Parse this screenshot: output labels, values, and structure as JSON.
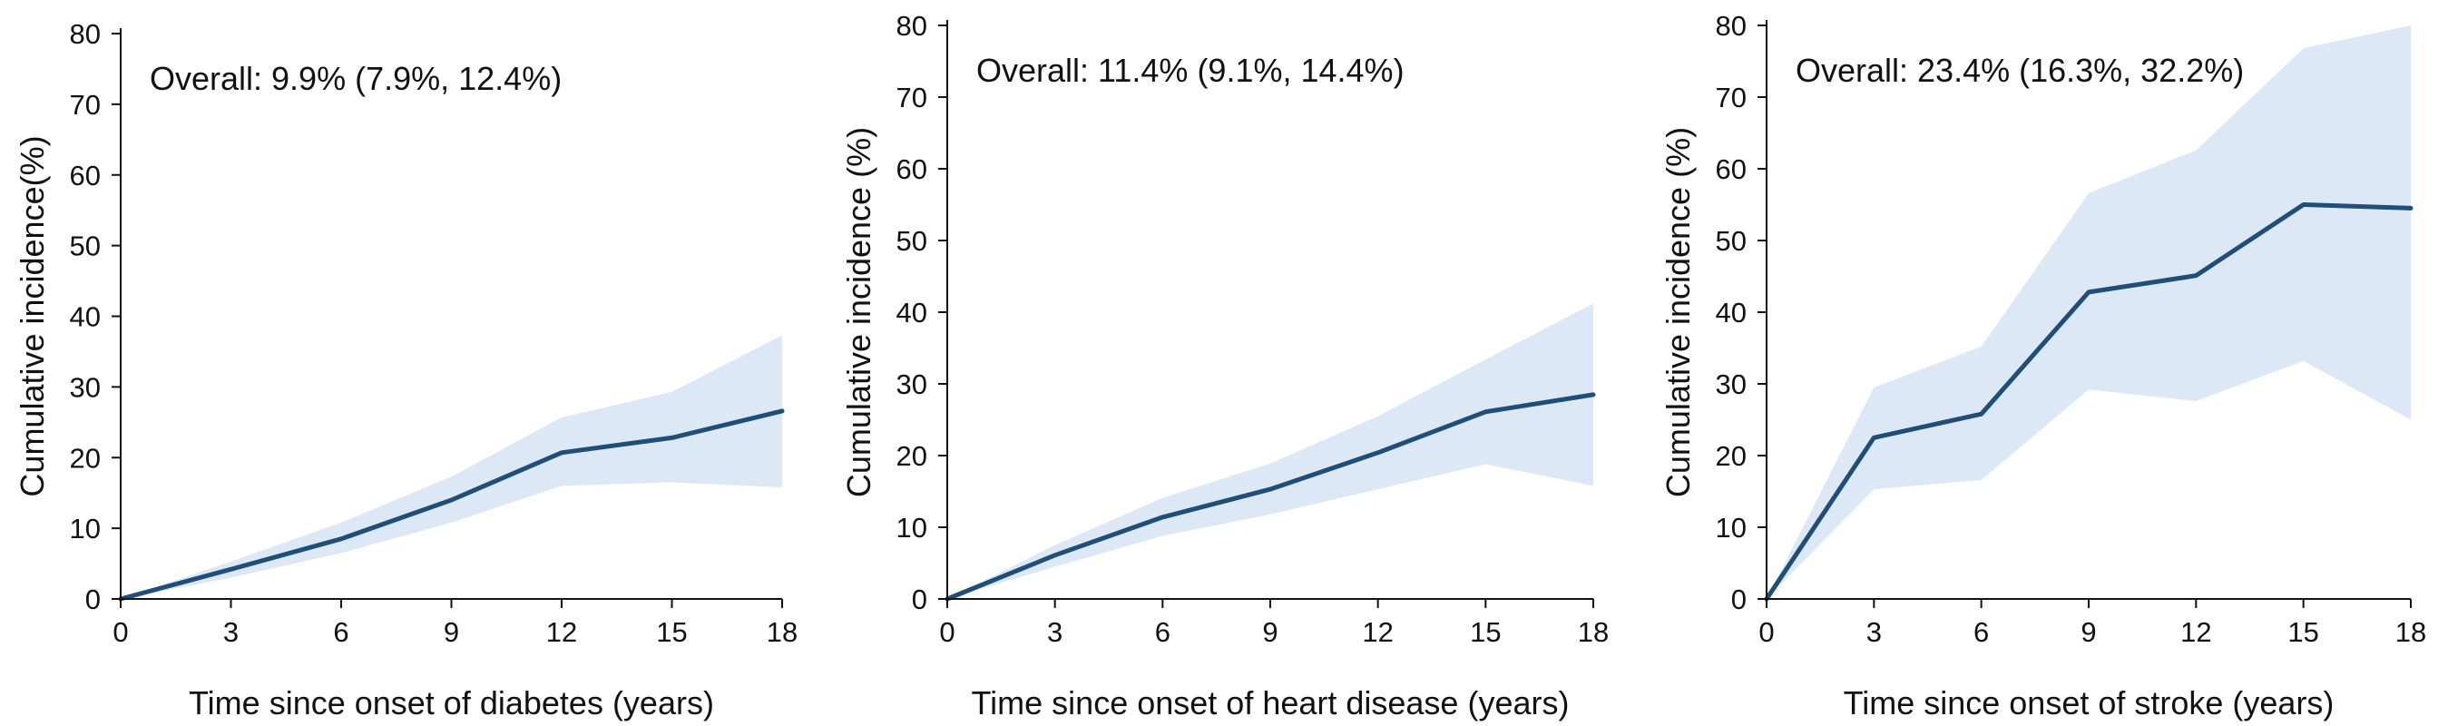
{
  "chart_data": [
    {
      "type": "line",
      "annotation": "Overall: 9.9% (7.9%, 12.4%)",
      "xlabel": "Time since onset of diabetes (years)",
      "ylabel": "Cumulative incidence(%)",
      "xlim": [
        0,
        18
      ],
      "ylim": [
        0,
        80
      ],
      "xticks": [
        0,
        3,
        6,
        9,
        12,
        15,
        18
      ],
      "yticks": [
        0,
        10,
        20,
        30,
        40,
        50,
        60,
        70,
        80
      ],
      "grid": false,
      "series": [
        {
          "x": [
            0,
            3,
            6,
            9,
            12,
            15,
            18
          ],
          "y": [
            0,
            4.2,
            8.5,
            14.0,
            20.7,
            22.8,
            26.6
          ],
          "ci_lower": [
            0,
            3.0,
            6.5,
            10.8,
            16.0,
            16.5,
            15.8
          ],
          "ci_upper": [
            0,
            5.3,
            10.8,
            17.3,
            25.7,
            29.3,
            37.3
          ]
        }
      ]
    },
    {
      "type": "line",
      "annotation": "Overall: 11.4% (9.1%, 14.4%)",
      "xlabel": "Time since onset of heart disease (years)",
      "ylabel": "Cumulative incidence (%)",
      "xlim": [
        0,
        18
      ],
      "ylim": [
        0,
        80
      ],
      "xticks": [
        0,
        3,
        6,
        9,
        12,
        15,
        18
      ],
      "yticks": [
        0,
        10,
        20,
        30,
        40,
        50,
        60,
        70,
        80
      ],
      "grid": false,
      "series": [
        {
          "x": [
            0,
            3,
            6,
            9,
            12,
            15,
            18
          ],
          "y": [
            0,
            6.1,
            11.4,
            15.3,
            20.4,
            26.1,
            28.5
          ],
          "ci_lower": [
            0,
            4.5,
            8.8,
            11.8,
            15.3,
            18.8,
            15.8
          ],
          "ci_upper": [
            0,
            7.5,
            14.1,
            18.9,
            25.5,
            33.4,
            41.2
          ]
        }
      ]
    },
    {
      "type": "line",
      "annotation": "Overall: 23.4% (16.3%, 32.2%)",
      "xlabel": "Time since onset of stroke (years)",
      "ylabel": "Cumulative incidence (%)",
      "xlim": [
        0,
        18
      ],
      "ylim": [
        0,
        80
      ],
      "xticks": [
        0,
        3,
        6,
        9,
        12,
        15,
        18
      ],
      "yticks": [
        0,
        10,
        20,
        30,
        40,
        50,
        60,
        70,
        80
      ],
      "grid": false,
      "series": [
        {
          "x": [
            0,
            3,
            6,
            9,
            12,
            15,
            18
          ],
          "y": [
            0,
            22.5,
            25.8,
            42.8,
            45.1,
            55.0,
            54.5
          ],
          "ci_lower": [
            0,
            15.3,
            16.6,
            29.2,
            27.6,
            33.2,
            25.0
          ],
          "ci_upper": [
            0,
            29.5,
            35.2,
            56.6,
            62.6,
            76.8,
            82.0
          ]
        }
      ]
    }
  ],
  "colors": {
    "line": "#1f4e79",
    "band": "#dde8f6",
    "axis": "#111111"
  }
}
